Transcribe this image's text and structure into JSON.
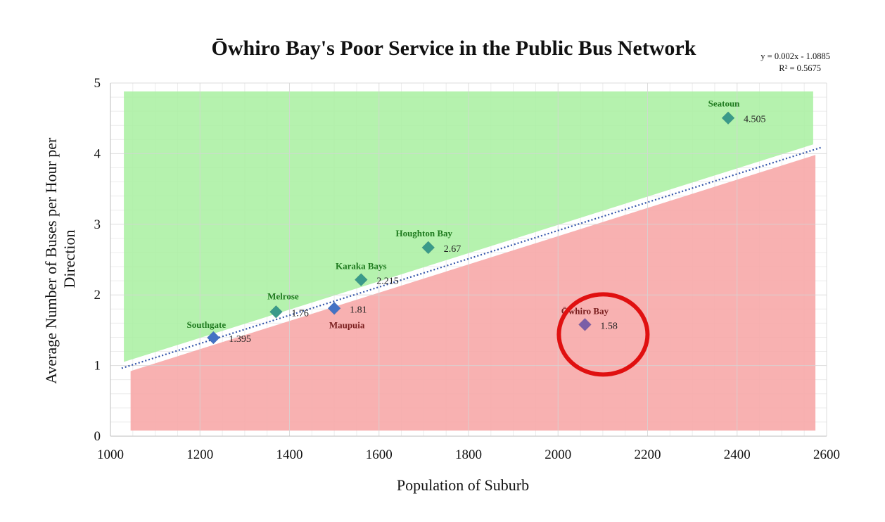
{
  "chart_data": {
    "type": "scatter",
    "title": "Ōwhiro Bay's Poor Service in the Public Bus Network",
    "xlabel": "Population of Suburb",
    "ylabel_lines": [
      "Average Number of Buses per Hour per",
      "Direction"
    ],
    "xlim": [
      1000,
      2600
    ],
    "ylim": [
      0,
      5
    ],
    "x_ticks": [
      1000,
      1200,
      1400,
      1600,
      1800,
      2000,
      2200,
      2400,
      2600
    ],
    "y_ticks": [
      0,
      1,
      2,
      3,
      4,
      5
    ],
    "grid": true,
    "trendline": {
      "type": "linear",
      "slope": 0.002,
      "intercept": -1.0885,
      "equation": "y = 0.002x - 1.0885",
      "r_squared": "R² = 0.5675",
      "color": "#3355aa"
    },
    "points": [
      {
        "name": "Southgate",
        "value_label": "1.395",
        "x": 1230,
        "y": 1.395,
        "color": "#4472c4",
        "name_color": "#1e7a1e"
      },
      {
        "name": "Melrose",
        "value_label": "1.76",
        "x": 1370,
        "y": 1.76,
        "color": "#3a9a8a",
        "name_color": "#1e7a1e"
      },
      {
        "name": "Maupuia",
        "value_label": "1.81",
        "x": 1500,
        "y": 1.81,
        "color": "#4472c4",
        "name_color": "#7a1e1e"
      },
      {
        "name": "Karaka Bays",
        "value_label": "2.215",
        "x": 1560,
        "y": 2.215,
        "color": "#3a9a8a",
        "name_color": "#1e7a1e"
      },
      {
        "name": "Houghton Bay",
        "value_label": "2.67",
        "x": 1710,
        "y": 2.67,
        "color": "#3a9a8a",
        "name_color": "#1e7a1e"
      },
      {
        "name": "Ōwhiro Bay",
        "value_label": "1.58",
        "x": 2060,
        "y": 1.58,
        "color": "#7b5ea7",
        "name_color": "#7a1e1e"
      },
      {
        "name": "Seatoun",
        "value_label": "4.505",
        "x": 2380,
        "y": 4.505,
        "color": "#3a9a8a",
        "name_color": "#1e7a1e"
      }
    ],
    "regions": {
      "above_color": "#a8f0a0",
      "below_color": "#f7a8a8"
    },
    "highlight": {
      "target": "Ōwhiro Bay",
      "color": "#e01010"
    }
  }
}
